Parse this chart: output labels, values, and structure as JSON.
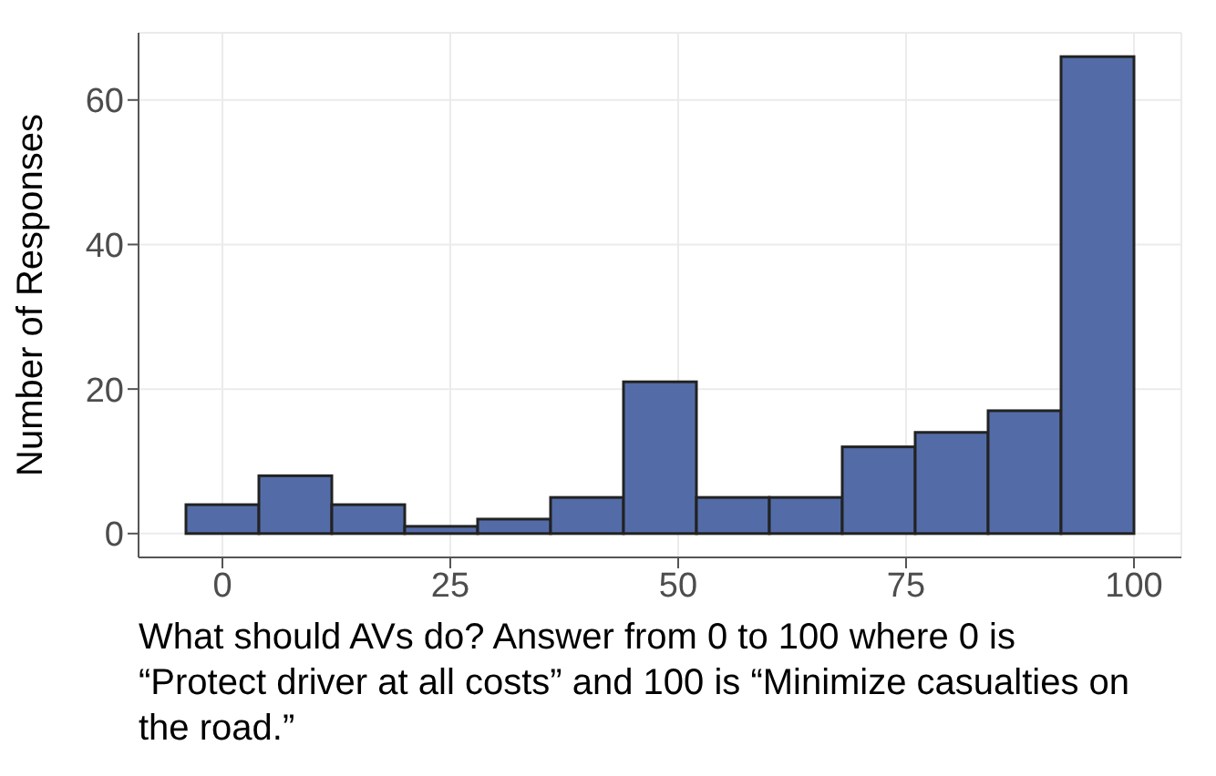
{
  "chart_data": {
    "type": "histogram",
    "xlabel": "What should AVs do? Answer from 0 to 100 where 0 is “Protect driver at all costs” and 100 is “Minimize casualties on the road.”",
    "ylabel": "Number of Responses",
    "bins": [
      -4,
      4,
      12,
      20,
      28,
      36,
      44,
      52,
      60,
      68,
      76,
      84,
      92,
      100
    ],
    "values": [
      4,
      8,
      4,
      1,
      2,
      5,
      21,
      5,
      5,
      12,
      14,
      17,
      66
    ],
    "color": "#536ca8",
    "xlim": [
      -9.2,
      105.2
    ],
    "xticks": [
      0,
      25,
      50,
      75,
      100
    ],
    "ylim": [
      -3.3,
      69.3
    ],
    "yticks": [
      0,
      20,
      40,
      60
    ],
    "grid": true
  }
}
